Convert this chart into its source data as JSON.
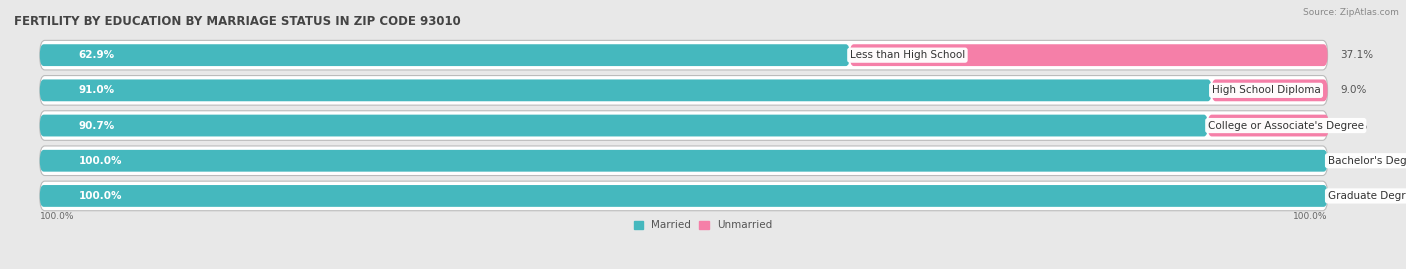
{
  "title": "FERTILITY BY EDUCATION BY MARRIAGE STATUS IN ZIP CODE 93010",
  "source": "Source: ZipAtlas.com",
  "categories": [
    "Less than High School",
    "High School Diploma",
    "College or Associate's Degree",
    "Bachelor's Degree",
    "Graduate Degree"
  ],
  "married": [
    62.9,
    91.0,
    90.7,
    100.0,
    100.0
  ],
  "unmarried": [
    37.1,
    9.0,
    9.4,
    0.0,
    0.0
  ],
  "married_color": "#45B8BE",
  "unmarried_color": "#F57FA8",
  "background_color": "#E8E8E8",
  "row_bg_color": "#FFFFFF",
  "title_fontsize": 8.5,
  "bar_label_fontsize": 7.5,
  "cat_label_fontsize": 7.5,
  "pct_label_fontsize": 7.5,
  "source_fontsize": 6.5,
  "legend_fontsize": 7.5,
  "tick_fontsize": 6.5,
  "x_left_label": "100.0%",
  "x_right_label": "100.0%"
}
